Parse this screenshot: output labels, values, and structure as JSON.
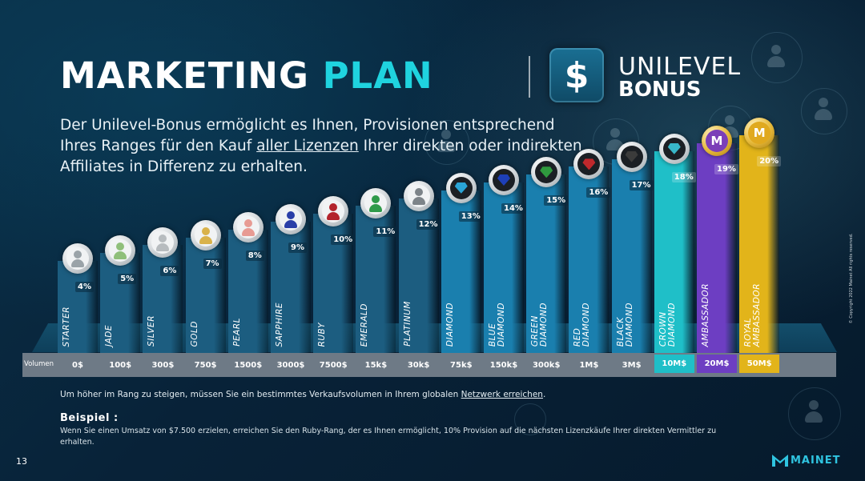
{
  "header": {
    "title_word1": "MARKETING",
    "title_word2": "PLAN",
    "bonus_icon_symbol": "$",
    "bonus_line1": "UNILEVEL",
    "bonus_line2": "BONUS"
  },
  "intro": {
    "part1": "Der Unilevel-Bonus ermöglicht es Ihnen, Provisionen entsprechend Ihres Ranges für den Kauf ",
    "underlined": "aller Lizenzen",
    "part2": " Ihrer direkten oder indirekten Affiliates in Differenz zu erhalten."
  },
  "copyright": "© Copyright 2022 Mainet All rights reserved.",
  "volume_label": "Volumen",
  "ranks": [
    {
      "name": "STARTER",
      "percent": "4%",
      "volume": "0$",
      "badge": "person-grey-icon",
      "tier": "base"
    },
    {
      "name": "JADE",
      "percent": "5%",
      "volume": "100$",
      "badge": "person-jade-icon",
      "tier": "base"
    },
    {
      "name": "SILVER",
      "percent": "6%",
      "volume": "300$",
      "badge": "person-silver-icon",
      "tier": "base"
    },
    {
      "name": "GOLD",
      "percent": "7%",
      "volume": "750$",
      "badge": "person-gold-icon",
      "tier": "base"
    },
    {
      "name": "PEARL",
      "percent": "8%",
      "volume": "1500$",
      "badge": "person-pearl-icon",
      "tier": "base"
    },
    {
      "name": "SAPPHIRE",
      "percent": "9%",
      "volume": "3000$",
      "badge": "person-sapphire-icon",
      "tier": "base"
    },
    {
      "name": "RUBY",
      "percent": "10%",
      "volume": "7500$",
      "badge": "person-ruby-icon",
      "tier": "base"
    },
    {
      "name": "EMERALD",
      "percent": "11%",
      "volume": "15k$",
      "badge": "person-emerald-icon",
      "tier": "base"
    },
    {
      "name": "PLATINUM",
      "percent": "12%",
      "volume": "30k$",
      "badge": "person-platinum-icon",
      "tier": "base"
    },
    {
      "name": "DIAMOND",
      "percent": "13%",
      "volume": "75k$",
      "badge": "diamond-icon",
      "tier": "diamond"
    },
    {
      "name": "BLUE\nDIAMOND",
      "percent": "14%",
      "volume": "150k$",
      "badge": "blue-diamond-icon",
      "tier": "diamond"
    },
    {
      "name": "GREEN\nDIAMOND",
      "percent": "15%",
      "volume": "300k$",
      "badge": "green-diamond-icon",
      "tier": "diamond"
    },
    {
      "name": "RED\nDIAMOND",
      "percent": "16%",
      "volume": "1M$",
      "badge": "red-diamond-icon",
      "tier": "diamond"
    },
    {
      "name": "BLACK\nDIAMOND",
      "percent": "17%",
      "volume": "3M$",
      "badge": "black-diamond-icon",
      "tier": "diamond"
    },
    {
      "name": "CROWN\nDIAMOND",
      "percent": "18%",
      "volume": "10M$",
      "badge": "crown-diamond-icon",
      "tier": "crown"
    },
    {
      "name": "AMBASSADOR",
      "percent": "19%",
      "volume": "20M$",
      "badge": "ambassador-icon",
      "tier": "ambassador"
    },
    {
      "name": "ROYAL\nAMBASSADOR",
      "percent": "20%",
      "volume": "50M$",
      "badge": "royal-ambassador-icon",
      "tier": "royal"
    }
  ],
  "badge_colors": {
    "person-grey-icon": "#9aa3a8",
    "person-jade-icon": "#8fbf7a",
    "person-silver-icon": "#b7bcbf",
    "person-gold-icon": "#d9b24a",
    "person-pearl-icon": "#e79b93",
    "person-sapphire-icon": "#2a3fa8",
    "person-ruby-icon": "#b3242c",
    "person-emerald-icon": "#2f9a4a",
    "person-platinum-icon": "#7d8489",
    "diamond-icon": "#2aa4d6",
    "blue-diamond-icon": "#1e3fb8",
    "green-diamond-icon": "#2f9a3e",
    "red-diamond-icon": "#c0282c",
    "black-diamond-icon": "#3b3b3b",
    "crown-diamond-icon": "#38b7c9",
    "ambassador-icon": "#7b3fb8",
    "royal-ambassador-icon": "#e0a91f"
  },
  "tier_colors": {
    "base": "#1c5d80",
    "diamond": "#1a7fae",
    "crown": "#1fbfc8",
    "ambassador": "#6d3ec2",
    "royal": "#e2b41a"
  },
  "note": {
    "part1": "Um höher im Rang zu steigen, müssen Sie ein bestimmtes Verkaufsvolumen in Ihrem globalen ",
    "underlined": "Netzwerk erreichen",
    "part2": "."
  },
  "example": {
    "title": "Beispiel :",
    "text": "Wenn Sie einen Umsatz von $7.500 erzielen, erreichen Sie den Ruby-Rang, der es Ihnen ermöglicht, 10% Provision auf die nächsten Lizenzkäufe Ihrer direkten Vermittler zu erhalten."
  },
  "footer": {
    "page_number": "13",
    "brand": "MAINET"
  }
}
